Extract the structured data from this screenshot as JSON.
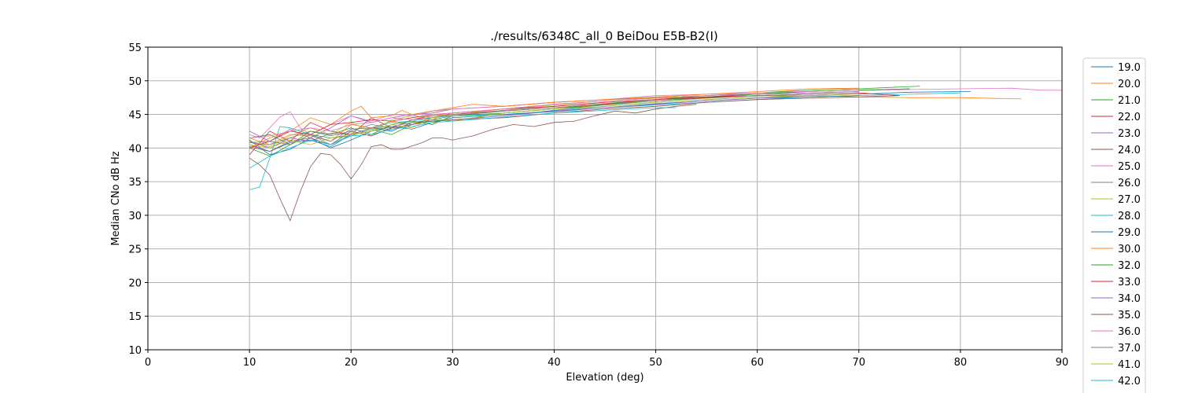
{
  "chart_data": {
    "type": "line",
    "title": "./results/6348C_all_0 BeiDou E5B-B2(I)",
    "xlabel": "Elevation (deg)",
    "ylabel": "Median CNo dB Hz",
    "xlim": [
      0,
      90
    ],
    "ylim": [
      10,
      55
    ],
    "xticks": [
      0,
      10,
      20,
      30,
      40,
      50,
      60,
      70,
      80,
      90
    ],
    "yticks": [
      10,
      15,
      20,
      25,
      30,
      35,
      40,
      45,
      50,
      55
    ],
    "grid": true,
    "legend_position": "right, outside plot (partially cut off at bottom)",
    "series": [
      {
        "name": "19.0",
        "color": "#1f77b4",
        "x": [
          10,
          12,
          14,
          16,
          18,
          20,
          22,
          24,
          26,
          28,
          30,
          35,
          40,
          45,
          50,
          55,
          60,
          65,
          70,
          75,
          80,
          81
        ],
        "y": [
          40.5,
          39.5,
          40.8,
          41.2,
          40.2,
          42.0,
          43.0,
          42.5,
          43.8,
          44.0,
          44.2,
          44.8,
          45.6,
          46.2,
          46.8,
          47.2,
          47.6,
          47.8,
          48.0,
          48.3,
          48.4,
          48.4
        ]
      },
      {
        "name": "20.0",
        "color": "#ff7f0e",
        "x": [
          10,
          12,
          14,
          16,
          18,
          20,
          22,
          24,
          26,
          28,
          30,
          35,
          40,
          45,
          50,
          55,
          60,
          65,
          70,
          75,
          80,
          86
        ],
        "y": [
          41.5,
          40.5,
          42.0,
          41.8,
          41.0,
          43.5,
          43.0,
          44.0,
          43.5,
          44.5,
          45.0,
          45.8,
          46.5,
          47.0,
          47.4,
          47.6,
          47.8,
          47.8,
          47.6,
          47.5,
          47.5,
          47.3
        ]
      },
      {
        "name": "21.0",
        "color": "#2ca02c",
        "x": [
          10,
          12,
          14,
          16,
          18,
          20,
          22,
          24,
          26,
          28,
          30,
          35,
          40,
          45,
          50,
          55,
          60,
          65,
          70,
          76
        ],
        "y": [
          40.0,
          38.8,
          40.5,
          42.0,
          41.5,
          41.8,
          42.8,
          42.0,
          43.5,
          44.2,
          44.0,
          45.2,
          45.8,
          46.6,
          47.2,
          47.8,
          48.2,
          48.6,
          48.8,
          49.2
        ]
      },
      {
        "name": "22.0",
        "color": "#d62728",
        "x": [
          10,
          12,
          14,
          16,
          18,
          20,
          22,
          24,
          26,
          28,
          30,
          35,
          40,
          45,
          50,
          55,
          60,
          65,
          70
        ],
        "y": [
          39.0,
          42.5,
          41.0,
          43.8,
          42.5,
          42.0,
          44.5,
          43.0,
          44.2,
          44.8,
          45.0,
          45.5,
          46.0,
          46.5,
          47.0,
          47.5,
          47.8,
          48.0,
          48.2
        ]
      },
      {
        "name": "23.0",
        "color": "#9467bd",
        "x": [
          10,
          12,
          14,
          16,
          18,
          20,
          22,
          24,
          26,
          28,
          30,
          35,
          40,
          45,
          50,
          55,
          60,
          65,
          70
        ],
        "y": [
          42.5,
          41.0,
          42.8,
          41.5,
          43.0,
          44.8,
          43.8,
          44.5,
          45.0,
          45.2,
          45.8,
          46.2,
          46.8,
          47.2,
          47.5,
          47.8,
          48.0,
          48.2,
          48.4
        ]
      },
      {
        "name": "24.0",
        "color": "#8c564b",
        "x": [
          10,
          11,
          12,
          13,
          14,
          15,
          16,
          17,
          18,
          19,
          20,
          21,
          22,
          23,
          24,
          25,
          26,
          27,
          28,
          29,
          30,
          32,
          34,
          36,
          38,
          40,
          42,
          44,
          46,
          48,
          50,
          52,
          54
        ],
        "y": [
          38.5,
          37.5,
          36.0,
          32.5,
          29.2,
          33.5,
          37.2,
          39.2,
          39.0,
          37.5,
          35.4,
          37.5,
          40.2,
          40.5,
          39.8,
          39.8,
          40.3,
          40.8,
          41.5,
          41.5,
          41.2,
          41.8,
          42.8,
          43.5,
          43.2,
          43.8,
          44.0,
          44.8,
          45.5,
          45.2,
          45.8,
          46.2,
          46.5
        ]
      },
      {
        "name": "25.0",
        "color": "#e377c2",
        "x": [
          10,
          11,
          12,
          13,
          14,
          15,
          16,
          18,
          20,
          22,
          24,
          26,
          28,
          30,
          35,
          40,
          45,
          50,
          55,
          60,
          65,
          70,
          75,
          80,
          85,
          88,
          90
        ],
        "y": [
          42.0,
          41.5,
          43.0,
          44.6,
          45.4,
          43.0,
          42.0,
          43.5,
          44.8,
          44.0,
          45.0,
          44.8,
          45.5,
          45.8,
          46.2,
          46.8,
          47.2,
          47.8,
          48.0,
          48.2,
          48.4,
          48.6,
          48.7,
          48.8,
          48.9,
          48.6,
          48.6
        ]
      },
      {
        "name": "26.0",
        "color": "#7f7f7f",
        "x": [
          10,
          12,
          14,
          16,
          18,
          20,
          22,
          24,
          26,
          28,
          30,
          35,
          40,
          45,
          50,
          55,
          60,
          65,
          70,
          75
        ],
        "y": [
          40.8,
          40.5,
          41.5,
          42.5,
          41.8,
          42.5,
          43.5,
          43.0,
          44.2,
          44.5,
          45.0,
          45.6,
          46.2,
          46.8,
          47.2,
          47.6,
          48.0,
          48.4,
          48.6,
          48.8
        ]
      },
      {
        "name": "27.0",
        "color": "#bcbd22",
        "x": [
          10,
          12,
          14,
          16,
          18,
          20,
          22,
          24,
          26,
          28,
          30,
          35,
          40,
          45,
          50,
          55,
          60,
          65,
          70
        ],
        "y": [
          41.0,
          40.2,
          41.8,
          43.0,
          42.0,
          43.8,
          42.5,
          44.2,
          44.8,
          44.5,
          45.2,
          45.8,
          46.4,
          47.0,
          47.5,
          47.8,
          48.2,
          48.4,
          48.6
        ]
      },
      {
        "name": "28.0",
        "color": "#17becf",
        "x": [
          10,
          11,
          12,
          13,
          14,
          16,
          18,
          20,
          22,
          24,
          26,
          28,
          30,
          35,
          40,
          45,
          50,
          55,
          60,
          65,
          70,
          75,
          80
        ],
        "y": [
          33.8,
          34.2,
          38.5,
          43.2,
          43.0,
          42.0,
          40.5,
          42.0,
          43.0,
          43.8,
          44.0,
          44.5,
          44.8,
          45.0,
          45.5,
          46.0,
          46.4,
          46.8,
          47.2,
          47.6,
          47.8,
          48.0,
          48.2
        ]
      },
      {
        "name": "29.0",
        "color": "#1f77b4",
        "x": [
          10,
          12,
          14,
          16,
          18,
          20,
          22,
          24,
          26,
          28,
          30,
          35,
          40,
          45,
          50,
          55,
          60,
          65,
          70
        ],
        "y": [
          41.2,
          39.0,
          39.8,
          41.5,
          40.0,
          41.2,
          42.5,
          43.2,
          42.8,
          43.8,
          44.5,
          45.0,
          45.4,
          46.0,
          46.6,
          47.0,
          47.4,
          47.6,
          47.8
        ]
      },
      {
        "name": "30.0",
        "color": "#ff7f0e",
        "x": [
          10,
          12,
          14,
          16,
          18,
          20,
          21,
          22,
          24,
          25,
          26,
          28,
          30,
          32,
          35,
          40,
          45,
          50,
          55,
          60,
          65,
          70
        ],
        "y": [
          40.0,
          41.5,
          42.5,
          44.5,
          43.5,
          45.5,
          46.2,
          44.5,
          44.8,
          45.6,
          45.0,
          45.5,
          46.0,
          46.5,
          46.2,
          46.8,
          47.2,
          47.6,
          48.0,
          48.4,
          48.8,
          48.9
        ]
      },
      {
        "name": "32.0",
        "color": "#2ca02c",
        "x": [
          10,
          12,
          14,
          16,
          18,
          20,
          22,
          24,
          26,
          28,
          30,
          35,
          40,
          45,
          50,
          55,
          60,
          65,
          70,
          75
        ],
        "y": [
          41.5,
          42.0,
          40.5,
          42.5,
          42.0,
          43.0,
          42.0,
          43.5,
          44.0,
          43.5,
          44.8,
          45.2,
          45.8,
          46.4,
          47.0,
          47.6,
          48.0,
          48.4,
          48.6,
          48.8
        ]
      },
      {
        "name": "33.0",
        "color": "#d62728",
        "x": [
          10,
          12,
          14,
          16,
          18,
          20,
          22,
          24,
          26,
          28,
          30,
          35,
          40,
          45,
          50,
          55,
          60,
          65,
          70,
          74
        ],
        "y": [
          40.0,
          41.0,
          42.5,
          42.0,
          43.5,
          43.8,
          44.2,
          44.0,
          44.5,
          45.0,
          45.2,
          45.8,
          46.2,
          46.8,
          47.2,
          47.6,
          47.8,
          48.0,
          48.2,
          47.8
        ]
      },
      {
        "name": "34.0",
        "color": "#9467bd",
        "x": [
          10,
          12,
          14,
          16,
          18,
          20,
          22,
          24,
          26,
          28,
          30,
          35,
          40,
          45,
          50,
          55,
          60,
          65,
          70
        ],
        "y": [
          41.0,
          40.0,
          41.5,
          41.0,
          42.2,
          42.0,
          43.0,
          42.8,
          43.5,
          44.0,
          44.2,
          44.8,
          45.5,
          46.0,
          46.5,
          47.0,
          47.4,
          47.8,
          48.0
        ]
      },
      {
        "name": "35.0",
        "color": "#8c564b",
        "x": [
          10,
          12,
          14,
          16,
          18,
          20,
          22,
          24,
          26,
          28,
          30,
          35,
          40,
          45,
          50,
          55,
          60,
          65,
          70,
          74
        ],
        "y": [
          40.2,
          39.5,
          41.0,
          41.5,
          40.5,
          42.5,
          41.8,
          43.0,
          43.5,
          44.0,
          44.2,
          44.5,
          45.2,
          45.8,
          46.2,
          46.8,
          47.2,
          47.4,
          47.6,
          47.8
        ]
      },
      {
        "name": "36.0",
        "color": "#e377c2",
        "x": [
          10,
          12,
          14,
          16,
          18,
          20,
          22,
          24,
          26,
          28,
          30,
          35,
          40,
          45,
          50,
          55,
          60,
          65,
          70
        ],
        "y": [
          41.5,
          41.8,
          42.5,
          43.0,
          42.5,
          43.5,
          43.8,
          44.5,
          44.2,
          45.0,
          45.2,
          45.8,
          46.5,
          47.0,
          47.4,
          47.8,
          48.2,
          48.4,
          48.6
        ]
      },
      {
        "name": "37.0",
        "color": "#7f7f7f",
        "x": [
          10,
          12,
          14,
          16,
          18,
          20,
          22,
          24,
          26,
          28,
          30,
          35,
          40,
          45,
          50,
          55,
          60,
          65,
          70
        ],
        "y": [
          40.8,
          41.0,
          40.5,
          42.0,
          41.0,
          42.8,
          43.0,
          43.2,
          43.8,
          44.2,
          44.8,
          45.5,
          46.0,
          46.6,
          47.0,
          47.4,
          47.8,
          48.0,
          48.2
        ]
      },
      {
        "name": "41.0",
        "color": "#bcbd22",
        "x": [
          10,
          12,
          14,
          16,
          18,
          20,
          22,
          24,
          26,
          28,
          30,
          35,
          40,
          45,
          50,
          55,
          60,
          65,
          70
        ],
        "y": [
          40.5,
          40.0,
          41.2,
          40.5,
          41.5,
          42.0,
          42.5,
          43.5,
          43.0,
          44.5,
          44.0,
          45.2,
          45.8,
          46.2,
          46.8,
          47.2,
          47.6,
          47.8,
          48.0
        ]
      },
      {
        "name": "42.0",
        "color": "#17becf",
        "x": [
          10,
          12,
          14,
          16,
          18,
          20,
          22,
          24,
          26,
          28,
          30,
          35,
          40,
          45,
          50,
          52
        ],
        "y": [
          37.0,
          38.8,
          40.0,
          41.2,
          40.5,
          41.8,
          42.0,
          42.8,
          43.2,
          43.8,
          44.0,
          44.6,
          45.2,
          45.6,
          46.0,
          46.0
        ]
      }
    ]
  }
}
